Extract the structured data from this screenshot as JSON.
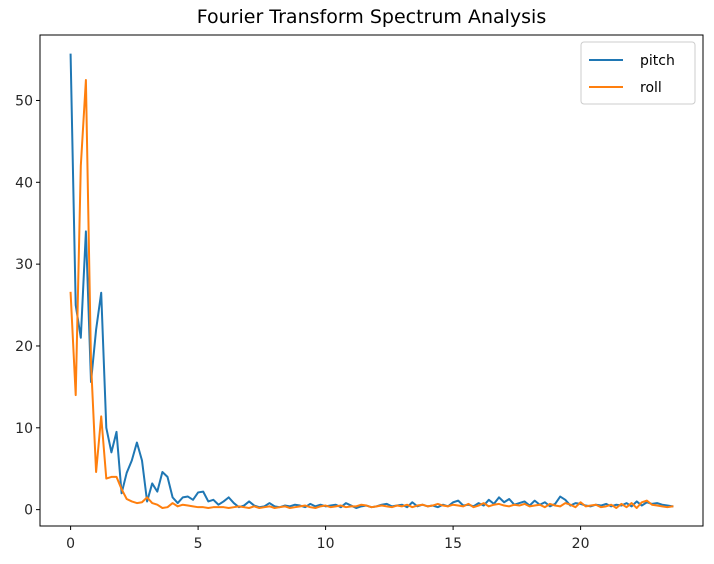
{
  "chart_data": {
    "type": "line",
    "title": "Fourier Transform Spectrum Analysis",
    "xlabel": "",
    "ylabel": "",
    "xlim": [
      -1.2,
      24.8
    ],
    "ylim": [
      -2,
      58
    ],
    "xticks": [
      0,
      5,
      10,
      15,
      20
    ],
    "yticks": [
      0,
      10,
      20,
      30,
      40,
      50
    ],
    "grid": false,
    "legend_position": "upper right",
    "x": [
      0,
      0.2,
      0.4,
      0.6,
      0.8,
      1.0,
      1.2,
      1.4,
      1.6,
      1.8,
      2.0,
      2.2,
      2.4,
      2.6,
      2.8,
      3.0,
      3.2,
      3.4,
      3.6,
      3.8,
      4.0,
      4.2,
      4.4,
      4.6,
      4.8,
      5.0,
      5.2,
      5.4,
      5.6,
      5.8,
      6.0,
      6.2,
      6.4,
      6.6,
      6.8,
      7.0,
      7.2,
      7.4,
      7.6,
      7.8,
      8.0,
      8.2,
      8.4,
      8.6,
      8.8,
      9.0,
      9.2,
      9.4,
      9.6,
      9.8,
      10.0,
      10.2,
      10.4,
      10.6,
      10.8,
      11.0,
      11.2,
      11.4,
      11.6,
      11.8,
      12.0,
      12.2,
      12.4,
      12.6,
      12.8,
      13.0,
      13.2,
      13.4,
      13.6,
      13.8,
      14.0,
      14.2,
      14.4,
      14.6,
      14.8,
      15.0,
      15.2,
      15.4,
      15.6,
      15.8,
      16.0,
      16.2,
      16.4,
      16.6,
      16.8,
      17.0,
      17.2,
      17.4,
      17.6,
      17.8,
      18.0,
      18.2,
      18.4,
      18.6,
      18.8,
      19.0,
      19.2,
      19.4,
      19.6,
      19.8,
      20.0,
      20.2,
      20.4,
      20.6,
      20.8,
      21.0,
      21.2,
      21.4,
      21.6,
      21.8,
      22.0,
      22.2,
      22.4,
      22.6,
      22.8,
      23.0,
      23.2,
      23.4,
      23.6
    ],
    "series": [
      {
        "name": "pitch",
        "color": "#1f77b4",
        "values": [
          55.6,
          25.0,
          21.0,
          34.0,
          15.6,
          22.0,
          26.5,
          10.0,
          7.0,
          9.5,
          2.0,
          4.5,
          6.0,
          8.2,
          6.0,
          1.0,
          3.2,
          2.2,
          4.6,
          4.0,
          1.5,
          0.8,
          1.5,
          1.6,
          1.2,
          2.1,
          2.2,
          1.0,
          1.2,
          0.6,
          1.0,
          1.5,
          0.8,
          0.3,
          0.5,
          1.0,
          0.5,
          0.3,
          0.4,
          0.8,
          0.4,
          0.3,
          0.5,
          0.4,
          0.6,
          0.5,
          0.3,
          0.7,
          0.4,
          0.6,
          0.4,
          0.5,
          0.6,
          0.3,
          0.8,
          0.5,
          0.2,
          0.4,
          0.5,
          0.3,
          0.4,
          0.6,
          0.7,
          0.4,
          0.5,
          0.6,
          0.3,
          0.9,
          0.4,
          0.6,
          0.4,
          0.5,
          0.3,
          0.6,
          0.4,
          0.9,
          1.1,
          0.5,
          0.6,
          0.4,
          0.8,
          0.5,
          1.2,
          0.7,
          1.5,
          0.9,
          1.3,
          0.6,
          0.8,
          1.0,
          0.5,
          1.1,
          0.6,
          0.9,
          0.4,
          0.7,
          1.6,
          1.2,
          0.5,
          0.8,
          0.7,
          0.5,
          0.4,
          0.6,
          0.5,
          0.7,
          0.4,
          0.6,
          0.5,
          0.8,
          0.4,
          1.0,
          0.5,
          0.9,
          0.7,
          0.8,
          0.6,
          0.5,
          0.4
        ]
      },
      {
        "name": "roll",
        "color": "#ff7f0e",
        "values": [
          26.5,
          14.0,
          42.0,
          52.5,
          18.0,
          4.6,
          11.4,
          3.8,
          4.0,
          4.0,
          2.5,
          1.3,
          1.0,
          0.8,
          0.9,
          1.5,
          0.8,
          0.6,
          0.2,
          0.3,
          0.8,
          0.4,
          0.6,
          0.5,
          0.4,
          0.3,
          0.3,
          0.2,
          0.3,
          0.3,
          0.3,
          0.2,
          0.3,
          0.4,
          0.3,
          0.2,
          0.4,
          0.2,
          0.3,
          0.4,
          0.2,
          0.3,
          0.4,
          0.2,
          0.3,
          0.4,
          0.5,
          0.3,
          0.2,
          0.4,
          0.5,
          0.3,
          0.4,
          0.5,
          0.3,
          0.4,
          0.4,
          0.6,
          0.5,
          0.3,
          0.4,
          0.5,
          0.4,
          0.3,
          0.5,
          0.4,
          0.6,
          0.3,
          0.5,
          0.6,
          0.4,
          0.5,
          0.7,
          0.5,
          0.4,
          0.6,
          0.5,
          0.4,
          0.7,
          0.3,
          0.5,
          0.8,
          0.4,
          0.6,
          0.7,
          0.5,
          0.4,
          0.6,
          0.5,
          0.7,
          0.4,
          0.5,
          0.6,
          0.3,
          0.7,
          0.5,
          0.4,
          0.8,
          0.6,
          0.3,
          0.9,
          0.4,
          0.5,
          0.6,
          0.3,
          0.4,
          0.6,
          0.2,
          0.7,
          0.3,
          0.8,
          0.2,
          0.9,
          1.1,
          0.6,
          0.5,
          0.4,
          0.3,
          0.4
        ]
      }
    ]
  }
}
